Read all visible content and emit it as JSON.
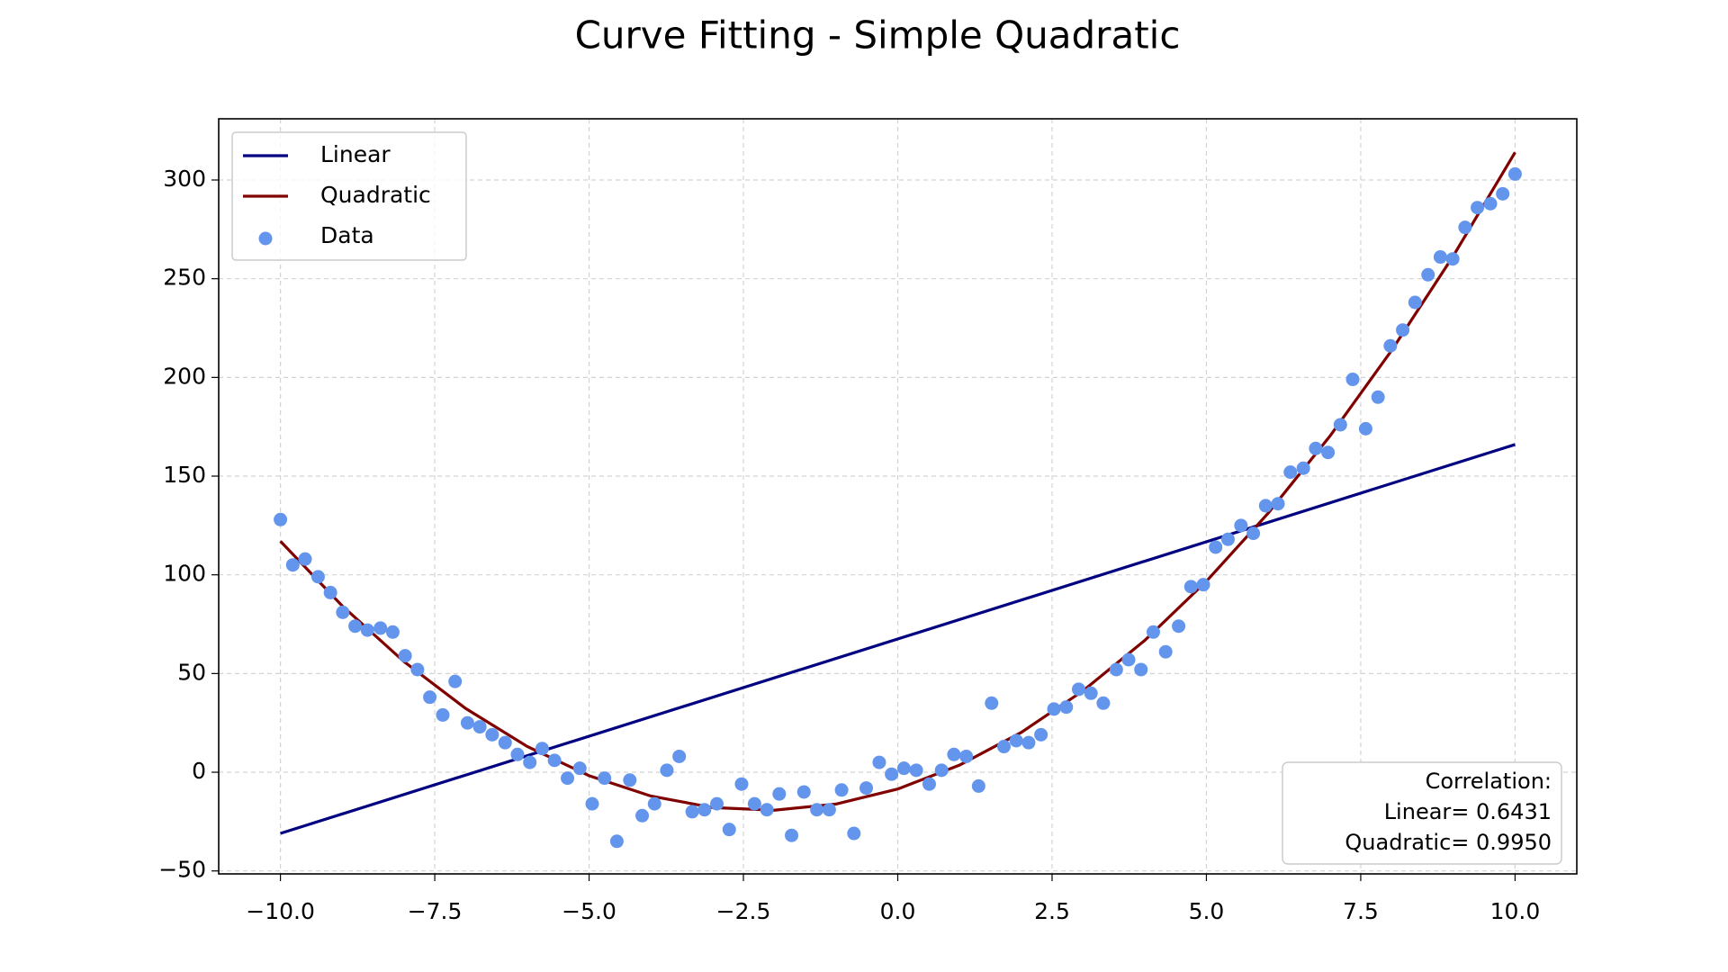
{
  "chart_data": {
    "type": "scatter",
    "title": "Curve Fitting - Simple Quadratic",
    "xlim": [
      -11,
      11
    ],
    "ylim": [
      -51.5,
      331
    ],
    "xticks": [
      {
        "value": -10,
        "label": "−10.0"
      },
      {
        "value": -7.5,
        "label": "−7.5"
      },
      {
        "value": -5,
        "label": "−5.0"
      },
      {
        "value": -2.5,
        "label": "−2.5"
      },
      {
        "value": 0,
        "label": "0.0"
      },
      2.5,
      {
        "value": 5,
        "label": "5.0"
      },
      7.5,
      {
        "value": 10,
        "label": "10.0"
      }
    ],
    "yticks": [
      {
        "value": -50,
        "label": "−50"
      },
      0,
      50,
      100,
      150,
      200,
      250,
      300
    ],
    "grid": true,
    "legend": "upper left",
    "annotation": [
      "Correlation:",
      "Linear= 0.6431",
      "Quadratic= 0.9950"
    ],
    "series": [
      {
        "name": "Linear",
        "kind": "line",
        "color": "#000080",
        "x": [
          -10,
          10
        ],
        "values": [
          -31,
          166
        ]
      },
      {
        "name": "Quadratic",
        "kind": "line",
        "color": "#800000",
        "x": [
          -10,
          -9,
          -8,
          -7,
          -6,
          -5,
          -4,
          -3,
          -2,
          -1,
          0,
          1,
          2,
          3,
          4,
          5,
          6,
          7,
          8,
          9,
          10
        ],
        "values": [
          117,
          84.29,
          56.06,
          32.31,
          13.04,
          -1.75,
          -12.06,
          -17.89,
          -19.24,
          -16.11,
          -8.5,
          3.59,
          20.16,
          41.21,
          66.74,
          96.75,
          131.24,
          170.21,
          213.66,
          261.59,
          314
        ]
      },
      {
        "name": "Data",
        "kind": "scatter",
        "color": "#6495ed",
        "x": [
          -10,
          -9.8,
          -9.6,
          -9.39,
          -9.19,
          -8.99,
          -8.79,
          -8.59,
          -8.38,
          -8.18,
          -7.98,
          -7.78,
          -7.58,
          -7.37,
          -7.17,
          -6.97,
          -6.77,
          -6.57,
          -6.36,
          -6.16,
          -5.96,
          -5.76,
          -5.56,
          -5.35,
          -5.15,
          -4.95,
          -4.75,
          -4.55,
          -4.34,
          -4.14,
          -3.94,
          -3.74,
          -3.54,
          -3.33,
          -3.13,
          -2.93,
          -2.73,
          -2.53,
          -2.32,
          -2.12,
          -1.92,
          -1.72,
          -1.52,
          -1.31,
          -1.11,
          -0.91,
          -0.71,
          -0.51,
          -0.3,
          -0.1,
          0.1,
          0.3,
          0.51,
          0.71,
          0.91,
          1.11,
          1.31,
          1.52,
          1.72,
          1.92,
          2.12,
          2.32,
          2.53,
          2.73,
          2.93,
          3.13,
          3.33,
          3.54,
          3.74,
          3.94,
          4.14,
          4.34,
          4.55,
          4.75,
          4.95,
          5.15,
          5.35,
          5.56,
          5.76,
          5.96,
          6.16,
          6.36,
          6.57,
          6.77,
          6.97,
          7.17,
          7.37,
          7.58,
          7.78,
          7.98,
          8.18,
          8.38,
          8.59,
          8.79,
          8.99,
          9.19,
          9.39,
          9.6,
          9.8,
          10
        ],
        "values": [
          128,
          105,
          108,
          99,
          91,
          81,
          74,
          72,
          73,
          71,
          59,
          52,
          38,
          29,
          46,
          25,
          23,
          19,
          15,
          9,
          5,
          12,
          6,
          -3,
          2,
          -16,
          -3,
          -35,
          -4,
          -22,
          -16,
          1,
          8,
          -20,
          -19,
          -16,
          -29,
          -6,
          -16,
          -19,
          -11,
          -32,
          -10,
          -19,
          -19,
          -9,
          -31,
          -8,
          5,
          -1,
          2,
          1,
          -6,
          1,
          9,
          8,
          -7,
          35,
          13,
          16,
          15,
          19,
          32,
          33,
          42,
          40,
          35,
          52,
          57,
          52,
          71,
          61,
          74,
          94,
          95,
          114,
          118,
          125,
          121,
          135,
          136,
          152,
          154,
          164,
          162,
          176,
          199,
          174,
          190,
          216,
          224,
          238,
          252,
          261,
          260,
          276,
          286,
          288,
          293,
          303
        ]
      }
    ]
  }
}
